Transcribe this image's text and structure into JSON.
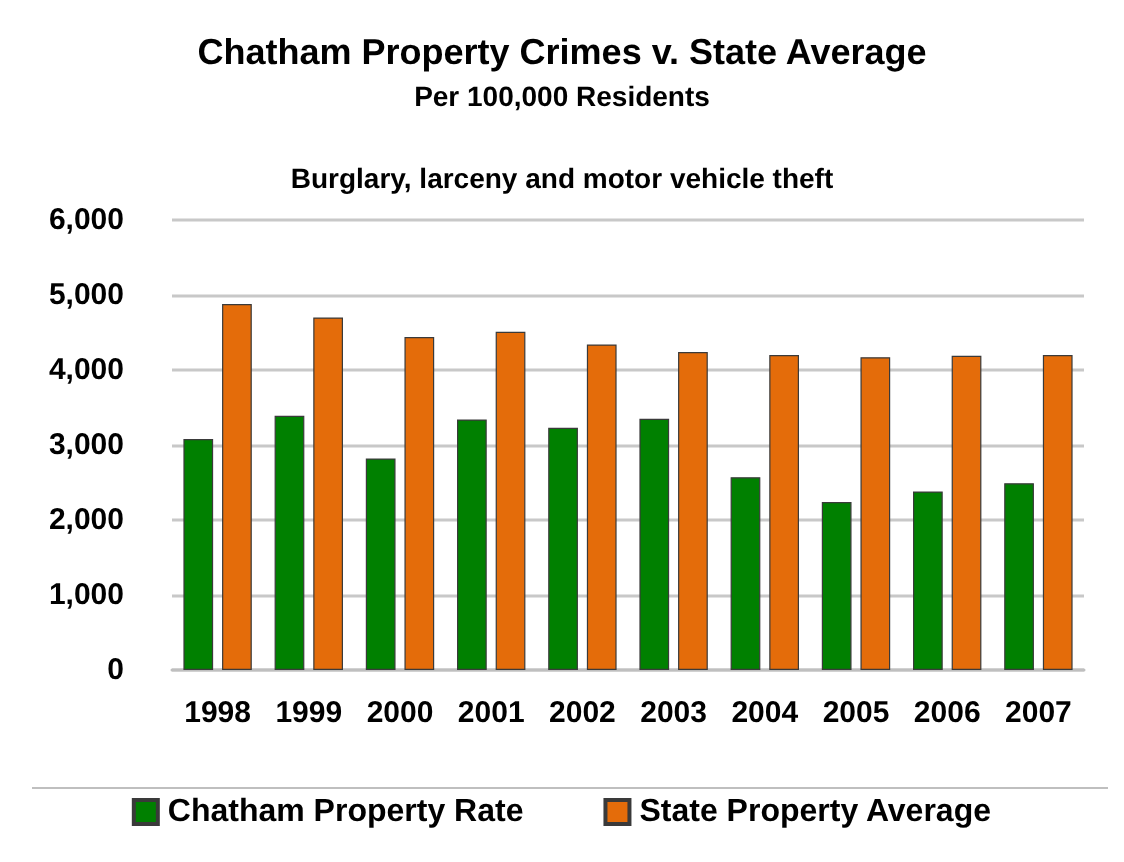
{
  "chart_data": {
    "type": "bar",
    "title": "Chatham Property Crimes v. State Average",
    "subtitle": "Per 100,000 Residents",
    "annotations": [
      "Burglary, larceny and motor vehicle theft"
    ],
    "categories": [
      "1998",
      "1999",
      "2000",
      "2001",
      "2002",
      "2003",
      "2004",
      "2005",
      "2006",
      "2007"
    ],
    "series": [
      {
        "name": "Chatham Property Rate",
        "color": "#008000",
        "values": [
          3080,
          3390,
          2820,
          3340,
          3230,
          3350,
          2570,
          2240,
          2380,
          2490
        ]
      },
      {
        "name": "State Property Average",
        "color": "#e46c0a",
        "values": [
          4880,
          4700,
          4440,
          4510,
          4340,
          4240,
          4200,
          4170,
          4190,
          4200
        ]
      }
    ],
    "ylim": [
      0,
      6000
    ],
    "yticks": [
      0,
      {
        "value": 1000,
        "label": "1,000"
      },
      {
        "value": 2000,
        "label": "2,000"
      },
      {
        "value": 3000,
        "label": "3,000"
      },
      {
        "value": 4000,
        "label": "4,000"
      },
      {
        "value": 5000,
        "label": "5,000"
      },
      {
        "value": 6000,
        "label": "6,000"
      }
    ],
    "grid": "y",
    "legend": "bottom"
  }
}
